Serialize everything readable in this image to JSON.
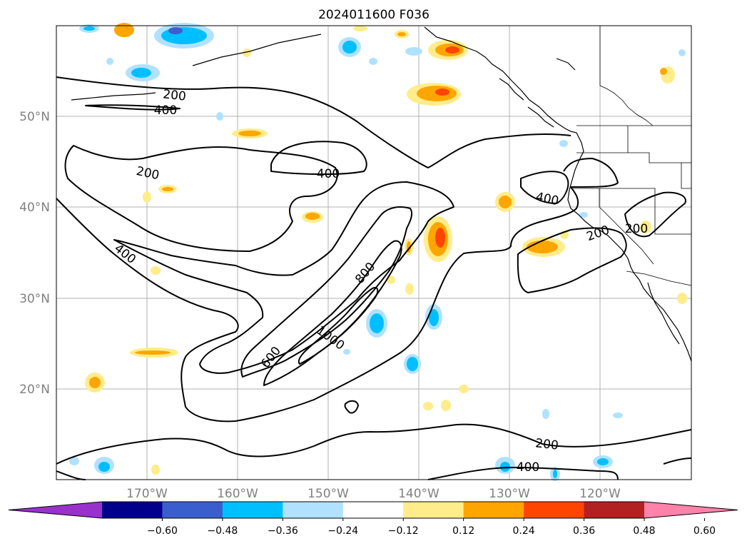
{
  "title": "2024011600 F036",
  "map": {
    "lon_labels": [
      "170°W",
      "160°W",
      "150°W",
      "140°W",
      "130°W",
      "120°W"
    ],
    "lat_labels": [
      "50°N",
      "40°N",
      "30°N",
      "20°N"
    ],
    "contour_labels": [
      "200",
      "400",
      "200",
      "400",
      "400",
      "800",
      "1000",
      "600",
      "200",
      "400",
      "200",
      "200",
      "400"
    ]
  },
  "colorbar": {
    "colors": [
      "#9932cc",
      "#00008b",
      "#3a5fcd",
      "#00bfff",
      "#b0e2ff",
      "#ffffff",
      "#ffec8b",
      "#ffa500",
      "#ff4500",
      "#b22222",
      "#ff82ab"
    ],
    "ticks": [
      "−0.60",
      "−0.48",
      "−0.36",
      "−0.24",
      "−0.12",
      "0.12",
      "0.24",
      "0.36",
      "0.48",
      "0.60"
    ]
  }
}
